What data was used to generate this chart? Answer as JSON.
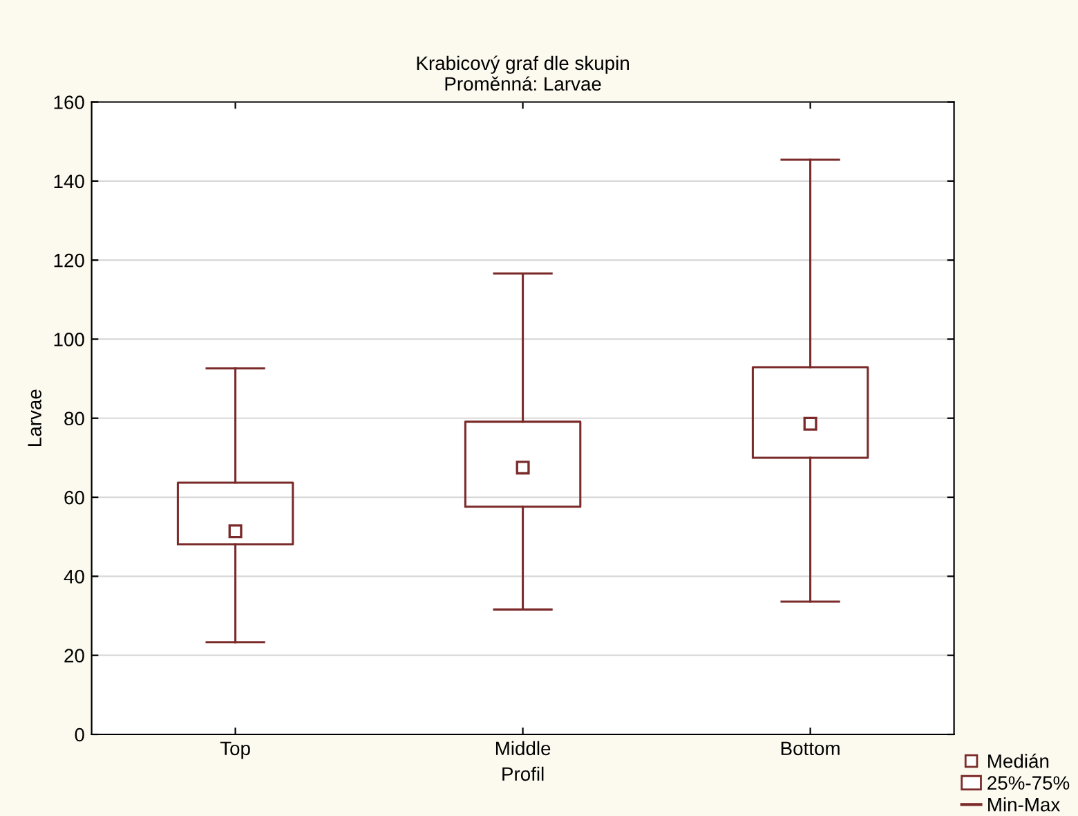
{
  "chart_data": {
    "type": "box",
    "title": "Krabicový graf dle skupin",
    "subtitle": "Proměnná: Larvae",
    "xlabel": "Profil",
    "ylabel": "Larvae",
    "categories": [
      "Top",
      "Middle",
      "Bottom"
    ],
    "series": [
      {
        "name": "Medián",
        "color": "#7b2a2a",
        "boxes": [
          {
            "low": 23.3,
            "q1": 48.1,
            "median": 51.4,
            "q3": 63.7,
            "high": 92.6
          },
          {
            "low": 31.6,
            "q1": 57.6,
            "median": 67.5,
            "q3": 79.1,
            "high": 116.6
          },
          {
            "low": 33.6,
            "q1": 70.0,
            "median": 78.6,
            "q3": 92.9,
            "high": 145.4
          }
        ]
      }
    ],
    "annotations": [
      "25%-75%",
      "Min-Max"
    ],
    "ylim": [
      0,
      160
    ],
    "yticks": [
      0,
      20,
      40,
      60,
      80,
      100,
      120,
      140,
      160
    ],
    "grid": "y",
    "legend": "bottom right",
    "marker": "square"
  }
}
